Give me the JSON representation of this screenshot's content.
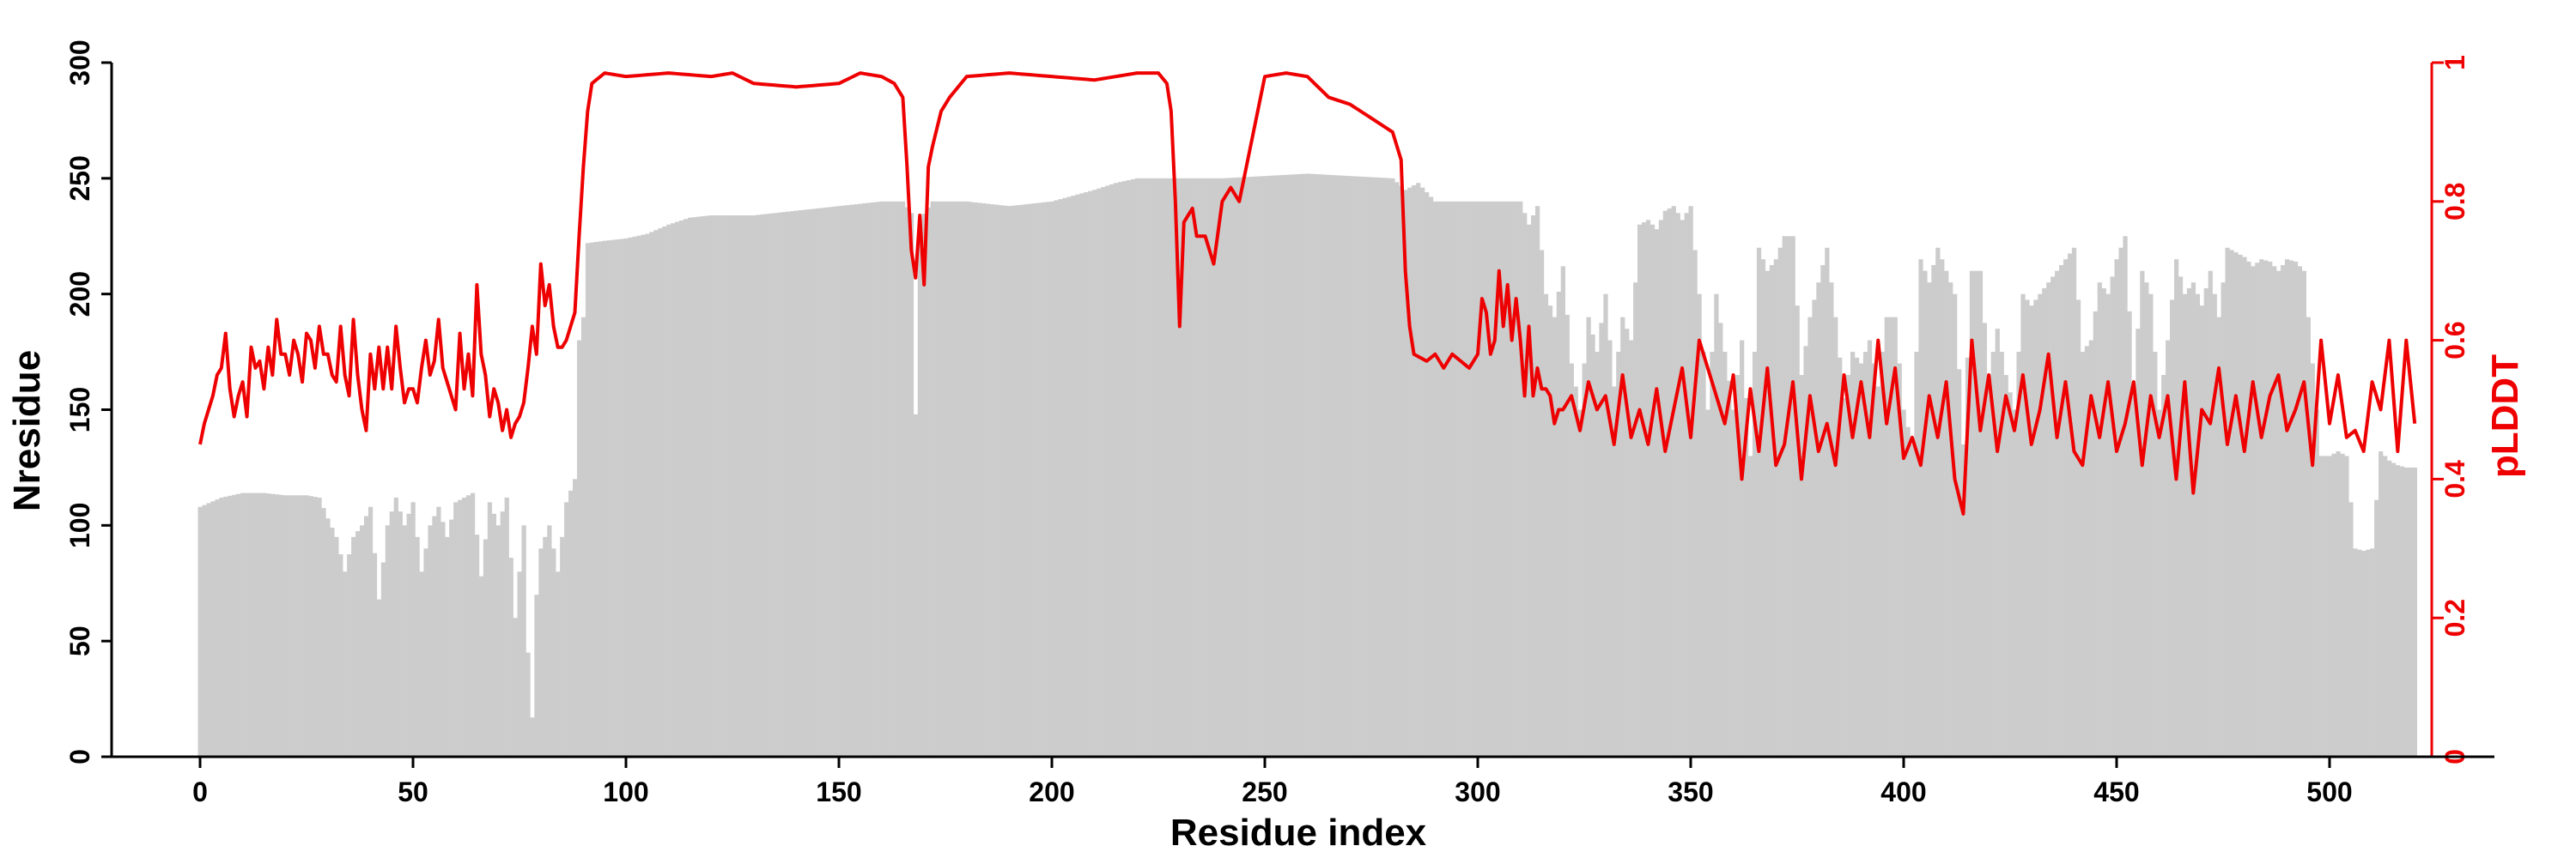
{
  "chart_data": {
    "type": "bar+line",
    "xlabel": "Residue index",
    "ylabel_left": "Nresidue",
    "ylabel_right": "pLDDT",
    "xlim": [
      -20,
      540
    ],
    "ylim_left": [
      0,
      300
    ],
    "ylim_right": [
      0,
      1
    ],
    "xticks": [
      0,
      50,
      100,
      150,
      200,
      250,
      300,
      350,
      400,
      450,
      500
    ],
    "yticks_left": [
      0,
      50,
      100,
      150,
      200,
      250,
      300
    ],
    "yticks_right": [
      0,
      0.2,
      0.4,
      0.6,
      0.8,
      1
    ],
    "colors": {
      "bars": "#cccccc",
      "line": "#ee0000",
      "axis": "#000000",
      "right_axis": "#ee0000"
    },
    "nresidue_knots": [
      [
        0,
        108
      ],
      [
        5,
        112
      ],
      [
        10,
        114
      ],
      [
        15,
        114
      ],
      [
        20,
        113
      ],
      [
        25,
        113
      ],
      [
        28,
        112
      ],
      [
        30,
        103
      ],
      [
        32,
        95
      ],
      [
        34,
        80
      ],
      [
        36,
        95
      ],
      [
        38,
        100
      ],
      [
        40,
        108
      ],
      [
        42,
        68
      ],
      [
        44,
        100
      ],
      [
        46,
        112
      ],
      [
        48,
        100
      ],
      [
        50,
        110
      ],
      [
        52,
        80
      ],
      [
        54,
        100
      ],
      [
        56,
        108
      ],
      [
        58,
        95
      ],
      [
        60,
        110
      ],
      [
        62,
        112
      ],
      [
        64,
        114
      ],
      [
        66,
        78
      ],
      [
        68,
        110
      ],
      [
        70,
        100
      ],
      [
        72,
        112
      ],
      [
        74,
        60
      ],
      [
        76,
        100
      ],
      [
        77,
        45
      ],
      [
        78,
        17
      ],
      [
        79,
        70
      ],
      [
        80,
        90
      ],
      [
        82,
        100
      ],
      [
        84,
        80
      ],
      [
        86,
        110
      ],
      [
        88,
        120
      ],
      [
        89,
        180
      ],
      [
        90,
        190
      ],
      [
        91,
        222
      ],
      [
        95,
        223
      ],
      [
        100,
        224
      ],
      [
        105,
        226
      ],
      [
        110,
        230
      ],
      [
        115,
        233
      ],
      [
        120,
        234
      ],
      [
        130,
        234
      ],
      [
        140,
        236
      ],
      [
        150,
        238
      ],
      [
        160,
        240
      ],
      [
        165,
        240
      ],
      [
        167,
        235
      ],
      [
        168,
        148
      ],
      [
        169,
        232
      ],
      [
        172,
        240
      ],
      [
        180,
        240
      ],
      [
        190,
        238
      ],
      [
        200,
        240
      ],
      [
        210,
        245
      ],
      [
        215,
        248
      ],
      [
        220,
        250
      ],
      [
        230,
        250
      ],
      [
        240,
        250
      ],
      [
        250,
        251
      ],
      [
        260,
        252
      ],
      [
        270,
        251
      ],
      [
        280,
        250
      ],
      [
        283,
        245
      ],
      [
        286,
        248
      ],
      [
        290,
        240
      ],
      [
        295,
        240
      ],
      [
        300,
        240
      ],
      [
        305,
        240
      ],
      [
        310,
        240
      ],
      [
        312,
        230
      ],
      [
        314,
        238
      ],
      [
        316,
        200
      ],
      [
        318,
        190
      ],
      [
        320,
        212
      ],
      [
        322,
        170
      ],
      [
        324,
        150
      ],
      [
        326,
        190
      ],
      [
        328,
        175
      ],
      [
        330,
        200
      ],
      [
        332,
        160
      ],
      [
        334,
        190
      ],
      [
        336,
        180
      ],
      [
        338,
        230
      ],
      [
        340,
        232
      ],
      [
        342,
        228
      ],
      [
        344,
        236
      ],
      [
        346,
        238
      ],
      [
        348,
        232
      ],
      [
        350,
        238
      ],
      [
        352,
        200
      ],
      [
        354,
        150
      ],
      [
        356,
        200
      ],
      [
        358,
        175
      ],
      [
        360,
        150
      ],
      [
        362,
        180
      ],
      [
        364,
        130
      ],
      [
        366,
        220
      ],
      [
        368,
        210
      ],
      [
        370,
        215
      ],
      [
        372,
        225
      ],
      [
        374,
        225
      ],
      [
        376,
        165
      ],
      [
        378,
        190
      ],
      [
        380,
        205
      ],
      [
        382,
        220
      ],
      [
        384,
        190
      ],
      [
        386,
        155
      ],
      [
        388,
        175
      ],
      [
        390,
        170
      ],
      [
        392,
        180
      ],
      [
        394,
        160
      ],
      [
        396,
        190
      ],
      [
        398,
        190
      ],
      [
        400,
        150
      ],
      [
        402,
        135
      ],
      [
        404,
        215
      ],
      [
        406,
        205
      ],
      [
        408,
        220
      ],
      [
        410,
        210
      ],
      [
        412,
        200
      ],
      [
        414,
        135
      ],
      [
        416,
        210
      ],
      [
        418,
        210
      ],
      [
        420,
        165
      ],
      [
        422,
        185
      ],
      [
        424,
        165
      ],
      [
        426,
        150
      ],
      [
        428,
        200
      ],
      [
        430,
        195
      ],
      [
        432,
        200
      ],
      [
        434,
        205
      ],
      [
        436,
        210
      ],
      [
        438,
        215
      ],
      [
        440,
        220
      ],
      [
        442,
        175
      ],
      [
        444,
        180
      ],
      [
        446,
        205
      ],
      [
        448,
        200
      ],
      [
        450,
        215
      ],
      [
        452,
        225
      ],
      [
        454,
        160
      ],
      [
        456,
        210
      ],
      [
        458,
        200
      ],
      [
        460,
        150
      ],
      [
        462,
        180
      ],
      [
        464,
        215
      ],
      [
        466,
        200
      ],
      [
        468,
        205
      ],
      [
        470,
        195
      ],
      [
        472,
        210
      ],
      [
        474,
        190
      ],
      [
        476,
        220
      ],
      [
        478,
        218
      ],
      [
        480,
        216
      ],
      [
        482,
        212
      ],
      [
        484,
        215
      ],
      [
        486,
        214
      ],
      [
        488,
        210
      ],
      [
        490,
        215
      ],
      [
        492,
        214
      ],
      [
        494,
        210
      ],
      [
        496,
        170
      ],
      [
        498,
        130
      ],
      [
        500,
        130
      ],
      [
        502,
        132
      ],
      [
        504,
        130
      ],
      [
        506,
        90
      ],
      [
        508,
        89
      ],
      [
        510,
        90
      ],
      [
        512,
        132
      ],
      [
        514,
        128
      ],
      [
        516,
        126
      ],
      [
        518,
        125
      ],
      [
        520,
        125
      ]
    ],
    "plddt_knots": [
      [
        0,
        0.45
      ],
      [
        1,
        0.48
      ],
      [
        3,
        0.52
      ],
      [
        4,
        0.55
      ],
      [
        5,
        0.56
      ],
      [
        6,
        0.61
      ],
      [
        7,
        0.53
      ],
      [
        8,
        0.49
      ],
      [
        9,
        0.52
      ],
      [
        10,
        0.54
      ],
      [
        11,
        0.49
      ],
      [
        12,
        0.59
      ],
      [
        13,
        0.56
      ],
      [
        14,
        0.57
      ],
      [
        15,
        0.53
      ],
      [
        16,
        0.59
      ],
      [
        17,
        0.55
      ],
      [
        18,
        0.63
      ],
      [
        19,
        0.58
      ],
      [
        20,
        0.58
      ],
      [
        21,
        0.55
      ],
      [
        22,
        0.6
      ],
      [
        23,
        0.58
      ],
      [
        24,
        0.54
      ],
      [
        25,
        0.61
      ],
      [
        26,
        0.6
      ],
      [
        27,
        0.56
      ],
      [
        28,
        0.62
      ],
      [
        29,
        0.58
      ],
      [
        30,
        0.58
      ],
      [
        31,
        0.55
      ],
      [
        32,
        0.54
      ],
      [
        33,
        0.62
      ],
      [
        34,
        0.55
      ],
      [
        35,
        0.52
      ],
      [
        36,
        0.63
      ],
      [
        37,
        0.55
      ],
      [
        38,
        0.5
      ],
      [
        39,
        0.47
      ],
      [
        40,
        0.58
      ],
      [
        41,
        0.53
      ],
      [
        42,
        0.59
      ],
      [
        43,
        0.53
      ],
      [
        44,
        0.59
      ],
      [
        45,
        0.53
      ],
      [
        46,
        0.62
      ],
      [
        47,
        0.56
      ],
      [
        48,
        0.51
      ],
      [
        49,
        0.53
      ],
      [
        50,
        0.53
      ],
      [
        51,
        0.51
      ],
      [
        52,
        0.56
      ],
      [
        53,
        0.6
      ],
      [
        54,
        0.55
      ],
      [
        55,
        0.57
      ],
      [
        56,
        0.63
      ],
      [
        57,
        0.56
      ],
      [
        58,
        0.54
      ],
      [
        59,
        0.52
      ],
      [
        60,
        0.5
      ],
      [
        61,
        0.61
      ],
      [
        62,
        0.53
      ],
      [
        63,
        0.58
      ],
      [
        64,
        0.52
      ],
      [
        65,
        0.68
      ],
      [
        66,
        0.58
      ],
      [
        67,
        0.55
      ],
      [
        68,
        0.49
      ],
      [
        69,
        0.53
      ],
      [
        70,
        0.51
      ],
      [
        71,
        0.47
      ],
      [
        72,
        0.5
      ],
      [
        73,
        0.46
      ],
      [
        74,
        0.48
      ],
      [
        75,
        0.49
      ],
      [
        76,
        0.51
      ],
      [
        77,
        0.56
      ],
      [
        78,
        0.62
      ],
      [
        79,
        0.58
      ],
      [
        80,
        0.71
      ],
      [
        81,
        0.65
      ],
      [
        82,
        0.68
      ],
      [
        83,
        0.62
      ],
      [
        84,
        0.59
      ],
      [
        85,
        0.59
      ],
      [
        86,
        0.6
      ],
      [
        87,
        0.62
      ],
      [
        88,
        0.64
      ],
      [
        89,
        0.75
      ],
      [
        90,
        0.85
      ],
      [
        91,
        0.93
      ],
      [
        92,
        0.97
      ],
      [
        95,
        0.985
      ],
      [
        100,
        0.98
      ],
      [
        110,
        0.985
      ],
      [
        120,
        0.98
      ],
      [
        125,
        0.985
      ],
      [
        130,
        0.97
      ],
      [
        140,
        0.965
      ],
      [
        150,
        0.97
      ],
      [
        155,
        0.985
      ],
      [
        160,
        0.98
      ],
      [
        163,
        0.97
      ],
      [
        165,
        0.95
      ],
      [
        166,
        0.85
      ],
      [
        167,
        0.73
      ],
      [
        168,
        0.69
      ],
      [
        169,
        0.78
      ],
      [
        170,
        0.68
      ],
      [
        171,
        0.85
      ],
      [
        172,
        0.88
      ],
      [
        174,
        0.93
      ],
      [
        176,
        0.95
      ],
      [
        180,
        0.98
      ],
      [
        190,
        0.985
      ],
      [
        200,
        0.98
      ],
      [
        210,
        0.975
      ],
      [
        220,
        0.985
      ],
      [
        225,
        0.985
      ],
      [
        227,
        0.97
      ],
      [
        228,
        0.93
      ],
      [
        229,
        0.8
      ],
      [
        230,
        0.62
      ],
      [
        231,
        0.77
      ],
      [
        233,
        0.79
      ],
      [
        234,
        0.75
      ],
      [
        236,
        0.75
      ],
      [
        238,
        0.71
      ],
      [
        240,
        0.8
      ],
      [
        242,
        0.82
      ],
      [
        244,
        0.8
      ],
      [
        246,
        0.86
      ],
      [
        248,
        0.92
      ],
      [
        250,
        0.98
      ],
      [
        255,
        0.985
      ],
      [
        260,
        0.98
      ],
      [
        265,
        0.95
      ],
      [
        270,
        0.94
      ],
      [
        275,
        0.92
      ],
      [
        280,
        0.9
      ],
      [
        282,
        0.86
      ],
      [
        283,
        0.7
      ],
      [
        284,
        0.62
      ],
      [
        285,
        0.58
      ],
      [
        288,
        0.57
      ],
      [
        290,
        0.58
      ],
      [
        292,
        0.56
      ],
      [
        294,
        0.58
      ],
      [
        296,
        0.57
      ],
      [
        298,
        0.56
      ],
      [
        300,
        0.58
      ],
      [
        301,
        0.66
      ],
      [
        302,
        0.64
      ],
      [
        303,
        0.58
      ],
      [
        304,
        0.6
      ],
      [
        305,
        0.7
      ],
      [
        306,
        0.62
      ],
      [
        307,
        0.68
      ],
      [
        308,
        0.6
      ],
      [
        309,
        0.66
      ],
      [
        310,
        0.6
      ],
      [
        311,
        0.52
      ],
      [
        312,
        0.62
      ],
      [
        313,
        0.52
      ],
      [
        314,
        0.56
      ],
      [
        315,
        0.53
      ],
      [
        316,
        0.53
      ],
      [
        317,
        0.52
      ],
      [
        318,
        0.48
      ],
      [
        319,
        0.5
      ],
      [
        320,
        0.5
      ],
      [
        322,
        0.52
      ],
      [
        324,
        0.47
      ],
      [
        326,
        0.54
      ],
      [
        328,
        0.5
      ],
      [
        330,
        0.52
      ],
      [
        332,
        0.45
      ],
      [
        334,
        0.55
      ],
      [
        336,
        0.46
      ],
      [
        338,
        0.5
      ],
      [
        340,
        0.45
      ],
      [
        342,
        0.53
      ],
      [
        344,
        0.44
      ],
      [
        346,
        0.5
      ],
      [
        348,
        0.56
      ],
      [
        350,
        0.46
      ],
      [
        352,
        0.6
      ],
      [
        354,
        0.56
      ],
      [
        356,
        0.52
      ],
      [
        358,
        0.48
      ],
      [
        360,
        0.55
      ],
      [
        362,
        0.4
      ],
      [
        364,
        0.53
      ],
      [
        366,
        0.44
      ],
      [
        368,
        0.56
      ],
      [
        370,
        0.42
      ],
      [
        372,
        0.45
      ],
      [
        374,
        0.54
      ],
      [
        376,
        0.4
      ],
      [
        378,
        0.52
      ],
      [
        380,
        0.44
      ],
      [
        382,
        0.48
      ],
      [
        384,
        0.42
      ],
      [
        386,
        0.55
      ],
      [
        388,
        0.46
      ],
      [
        390,
        0.54
      ],
      [
        392,
        0.46
      ],
      [
        394,
        0.6
      ],
      [
        396,
        0.48
      ],
      [
        398,
        0.56
      ],
      [
        400,
        0.43
      ],
      [
        402,
        0.46
      ],
      [
        404,
        0.42
      ],
      [
        406,
        0.52
      ],
      [
        408,
        0.46
      ],
      [
        410,
        0.54
      ],
      [
        412,
        0.4
      ],
      [
        414,
        0.35
      ],
      [
        416,
        0.6
      ],
      [
        418,
        0.47
      ],
      [
        420,
        0.55
      ],
      [
        422,
        0.44
      ],
      [
        424,
        0.52
      ],
      [
        426,
        0.47
      ],
      [
        428,
        0.55
      ],
      [
        430,
        0.45
      ],
      [
        432,
        0.5
      ],
      [
        434,
        0.58
      ],
      [
        436,
        0.46
      ],
      [
        438,
        0.54
      ],
      [
        440,
        0.44
      ],
      [
        442,
        0.42
      ],
      [
        444,
        0.52
      ],
      [
        446,
        0.46
      ],
      [
        448,
        0.54
      ],
      [
        450,
        0.44
      ],
      [
        452,
        0.48
      ],
      [
        454,
        0.54
      ],
      [
        456,
        0.42
      ],
      [
        458,
        0.52
      ],
      [
        460,
        0.46
      ],
      [
        462,
        0.52
      ],
      [
        464,
        0.4
      ],
      [
        466,
        0.54
      ],
      [
        468,
        0.38
      ],
      [
        470,
        0.5
      ],
      [
        472,
        0.48
      ],
      [
        474,
        0.56
      ],
      [
        476,
        0.45
      ],
      [
        478,
        0.52
      ],
      [
        480,
        0.44
      ],
      [
        482,
        0.54
      ],
      [
        484,
        0.46
      ],
      [
        486,
        0.52
      ],
      [
        488,
        0.55
      ],
      [
        490,
        0.47
      ],
      [
        492,
        0.5
      ],
      [
        494,
        0.54
      ],
      [
        496,
        0.42
      ],
      [
        498,
        0.6
      ],
      [
        500,
        0.48
      ],
      [
        502,
        0.55
      ],
      [
        504,
        0.46
      ],
      [
        506,
        0.47
      ],
      [
        508,
        0.44
      ],
      [
        510,
        0.54
      ],
      [
        512,
        0.5
      ],
      [
        514,
        0.6
      ],
      [
        516,
        0.44
      ],
      [
        518,
        0.6
      ],
      [
        520,
        0.48
      ]
    ]
  }
}
